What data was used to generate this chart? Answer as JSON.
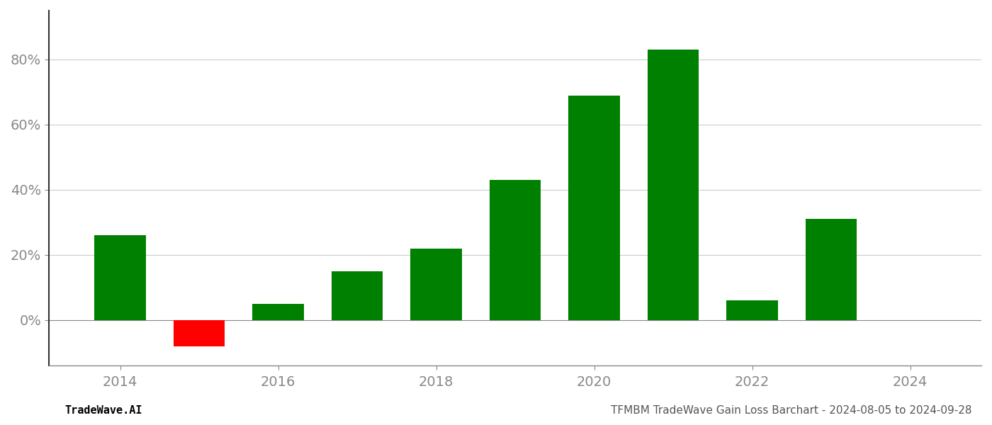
{
  "years": [
    2014,
    2015,
    2016,
    2017,
    2018,
    2019,
    2020,
    2021,
    2022,
    2023
  ],
  "values": [
    0.26,
    -0.08,
    0.05,
    0.15,
    0.22,
    0.43,
    0.69,
    0.83,
    0.06,
    0.31
  ],
  "colors": [
    "#008000",
    "#ff0000",
    "#008000",
    "#008000",
    "#008000",
    "#008000",
    "#008000",
    "#008000",
    "#008000",
    "#008000"
  ],
  "yticks": [
    0.0,
    0.2,
    0.4,
    0.6,
    0.8
  ],
  "ytick_labels": [
    "0%",
    "20%",
    "40%",
    "60%",
    "80%"
  ],
  "xticks": [
    2014,
    2016,
    2018,
    2020,
    2022,
    2024
  ],
  "ylim": [
    -0.14,
    0.95
  ],
  "xlim": [
    2013.1,
    2024.9
  ],
  "title": "TFMBM TradeWave Gain Loss Barchart - 2024-08-05 to 2024-09-28",
  "footer_left": "TradeWave.AI",
  "bar_width": 0.65,
  "grid_color": "#cccccc",
  "background_color": "#ffffff",
  "tick_fontsize": 14,
  "footer_fontsize": 11
}
